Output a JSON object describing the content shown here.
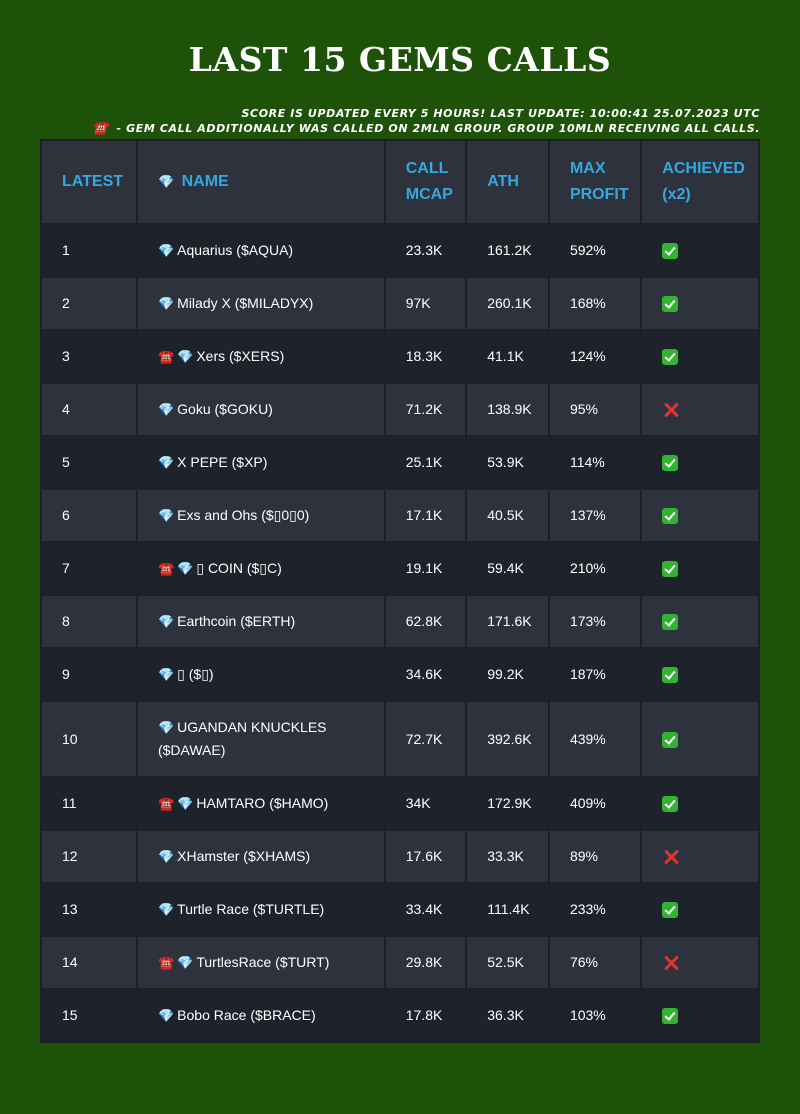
{
  "title": "LAST 15 GEMS CALLS",
  "notes": {
    "line1": "SCORE IS UPDATED EVERY 5 HOURS! LAST UPDATE: 10:00:41 25.07.2023 UTC",
    "line2_icon": "☎️",
    "line2": " - GEM CALL ADDITIONALLY WAS CALLED ON 2MLN GROUP. GROUP 10MLN RECEIVING ALL CALLS."
  },
  "table": {
    "headers": {
      "latest": "LATEST",
      "name_icon": "💎",
      "name": " NAME",
      "call_mcap": "CALL MCAP",
      "ath": "ATH",
      "max_profit": "MAX PROFIT",
      "achieved": "ACHIEVED",
      "achieved_suffix": "(x2)"
    },
    "rows": [
      {
        "num": "1",
        "phone": false,
        "name": "Aquarius ($AQUA)",
        "call_mcap": "23.3K",
        "ath": "161.2K",
        "max_profit": "592%",
        "achieved": true
      },
      {
        "num": "2",
        "phone": false,
        "name": "Milady X ($MILADYX)",
        "call_mcap": "97K",
        "ath": "260.1K",
        "max_profit": "168%",
        "achieved": true
      },
      {
        "num": "3",
        "phone": true,
        "name": "Xers ($XERS)",
        "call_mcap": "18.3K",
        "ath": "41.1K",
        "max_profit": "124%",
        "achieved": true
      },
      {
        "num": "4",
        "phone": false,
        "name": "Goku ($GOKU)",
        "call_mcap": "71.2K",
        "ath": "138.9K",
        "max_profit": "95%",
        "achieved": false
      },
      {
        "num": "5",
        "phone": false,
        "name": "X PEPE ($XP)",
        "call_mcap": "25.1K",
        "ath": "53.9K",
        "max_profit": "114%",
        "achieved": true
      },
      {
        "num": "6",
        "phone": false,
        "name": "Exs and Ohs ($▯0▯0)",
        "call_mcap": "17.1K",
        "ath": "40.5K",
        "max_profit": "137%",
        "achieved": true
      },
      {
        "num": "7",
        "phone": true,
        "name": "▯ COIN ($▯C)",
        "call_mcap": "19.1K",
        "ath": "59.4K",
        "max_profit": "210%",
        "achieved": true
      },
      {
        "num": "8",
        "phone": false,
        "name": "Earthcoin ($ERTH)",
        "call_mcap": "62.8K",
        "ath": "171.6K",
        "max_profit": "173%",
        "achieved": true
      },
      {
        "num": "9",
        "phone": false,
        "name": "▯ ($▯)",
        "call_mcap": "34.6K",
        "ath": "99.2K",
        "max_profit": "187%",
        "achieved": true
      },
      {
        "num": "10",
        "phone": false,
        "name": "UGANDAN KNUCKLES ($DAWAE)",
        "call_mcap": "72.7K",
        "ath": "392.6K",
        "max_profit": "439%",
        "achieved": true
      },
      {
        "num": "11",
        "phone": true,
        "name": "HAMTARO ($HAMO)",
        "call_mcap": "34K",
        "ath": "172.9K",
        "max_profit": "409%",
        "achieved": true
      },
      {
        "num": "12",
        "phone": false,
        "name": "XHamster ($XHAMS)",
        "call_mcap": "17.6K",
        "ath": "33.3K",
        "max_profit": "89%",
        "achieved": false
      },
      {
        "num": "13",
        "phone": false,
        "name": "Turtle Race ($TURTLE)",
        "call_mcap": "33.4K",
        "ath": "111.4K",
        "max_profit": "233%",
        "achieved": true
      },
      {
        "num": "14",
        "phone": true,
        "name": "TurtlesRace ($TURT)",
        "call_mcap": "29.8K",
        "ath": "52.5K",
        "max_profit": "76%",
        "achieved": false
      },
      {
        "num": "15",
        "phone": false,
        "name": "Bobo Race ($BRACE)",
        "call_mcap": "17.8K",
        "ath": "36.3K",
        "max_profit": "103%",
        "achieved": true
      }
    ]
  },
  "icons": {
    "gem": "💎",
    "phone": "☎️",
    "check": "check-mark-icon",
    "cross": "cross-mark-icon"
  },
  "colors": {
    "background": "#1e5209",
    "header_text": "#36a8e0",
    "row_dark": "#1e222b",
    "row_light": "#2d323d",
    "check": "#34b233",
    "cross": "#e3342f"
  }
}
